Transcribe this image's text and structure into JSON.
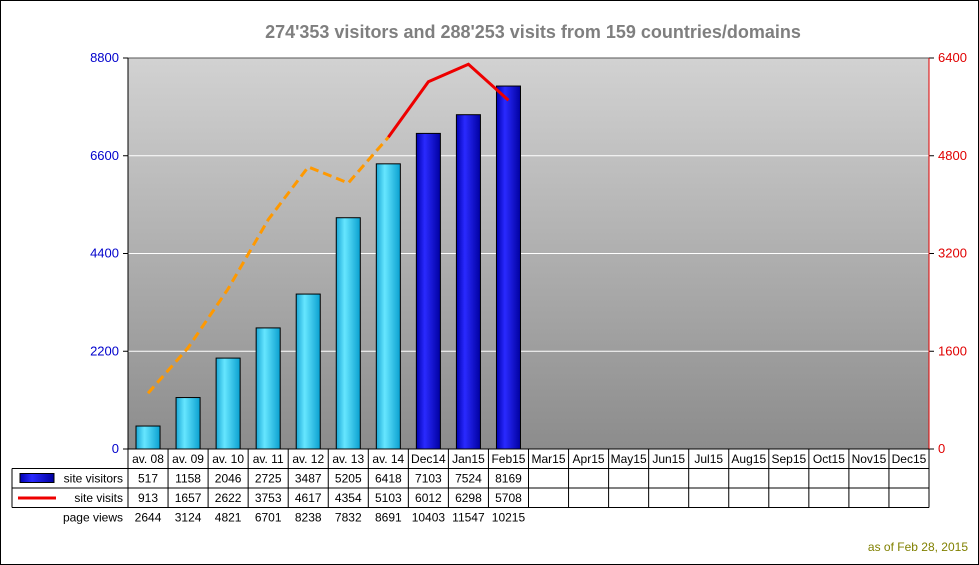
{
  "chart_data": {
    "type": "bar",
    "title": "274'353 visitors and 288'253 visits from 159 countries/domains",
    "categories": [
      "av. 08",
      "av. 09",
      "av. 10",
      "av. 11",
      "av. 12",
      "av. 13",
      "av. 14",
      "Dec14",
      "Jan15",
      "Feb15",
      "Mar15",
      "Apr15",
      "May15",
      "Jun15",
      "Jul15",
      "Aug15",
      "Sep15",
      "Oct15",
      "Nov15",
      "Dec15"
    ],
    "series": [
      {
        "name": "site visitors",
        "type": "bar",
        "axis": "left",
        "color": "#0000cc",
        "average_color": "#33ccee",
        "values": [
          517,
          1158,
          2046,
          2725,
          3487,
          5205,
          6418,
          7103,
          7524,
          8169,
          null,
          null,
          null,
          null,
          null,
          null,
          null,
          null,
          null,
          null
        ]
      },
      {
        "name": "site visits",
        "type": "line",
        "axis": "right",
        "color": "#ee0000",
        "average_color": "#ff9900",
        "values": [
          913,
          1657,
          2622,
          3753,
          4617,
          4354,
          5103,
          6012,
          6298,
          5708,
          null,
          null,
          null,
          null,
          null,
          null,
          null,
          null,
          null,
          null
        ]
      },
      {
        "name": "page views",
        "type": "table-only",
        "values": [
          2644,
          3124,
          4821,
          6701,
          8238,
          7832,
          8691,
          10403,
          11547,
          10215,
          null,
          null,
          null,
          null,
          null,
          null,
          null,
          null,
          null,
          null
        ]
      }
    ],
    "y_left": {
      "ylim": [
        0,
        8800
      ],
      "ticks": [
        "0",
        "2200",
        "4400",
        "6600",
        "8800"
      ],
      "color": "#0000cc"
    },
    "y_right": {
      "ylim": [
        0,
        6400
      ],
      "ticks": [
        "0",
        "1600",
        "3200",
        "4800",
        "6400"
      ],
      "color": "#ee0000"
    },
    "average_categories": 7,
    "grid": true,
    "legend": "data-table"
  },
  "footer": {
    "note": "as of Feb 28, 2015"
  }
}
